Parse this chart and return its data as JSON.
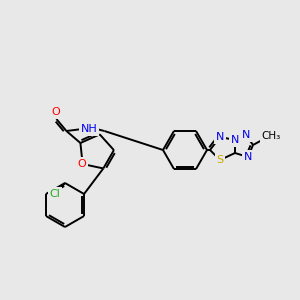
{
  "background_color": "#e8e8e8",
  "colors": {
    "C": "#000000",
    "N": "#0000ee",
    "O": "#ff0000",
    "S": "#ccaa00",
    "Cl": "#22aa22",
    "bond": "#000000"
  },
  "bond_lw": 1.4,
  "font_size": 7.5
}
